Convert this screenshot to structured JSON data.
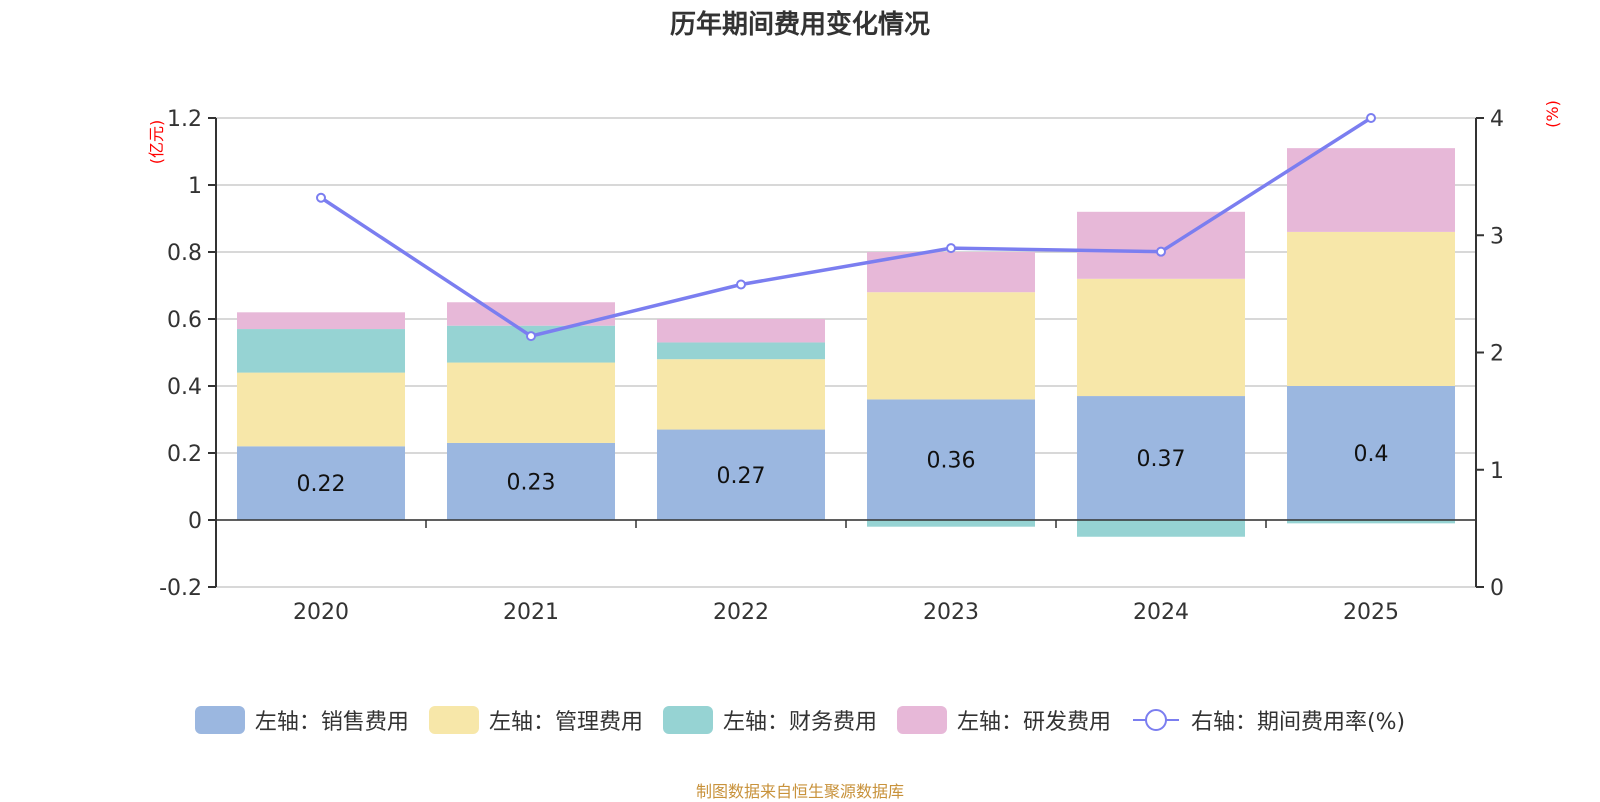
{
  "title": "历年期间费用变化情况",
  "footer": "制图数据来自恒生聚源数据库",
  "chart_data": {
    "type": "bar",
    "stacked": true,
    "title": "历年期间费用变化情况",
    "categories": [
      "2020",
      "2021",
      "2022",
      "2023",
      "2024",
      "2025"
    ],
    "left_axis": {
      "unit_label": "(亿元)",
      "ylim": [
        -0.2,
        1.2
      ],
      "ticks": [
        -0.2,
        0,
        0.2,
        0.4,
        0.6,
        0.8,
        1,
        1.2
      ],
      "tick_labels": [
        "-0.2",
        "0",
        "0.2",
        "0.4",
        "0.6",
        "0.8",
        "1",
        "1.2"
      ]
    },
    "right_axis": {
      "unit_label": "(%)",
      "ylim": [
        0,
        4
      ],
      "ticks": [
        0,
        1,
        2,
        3,
        4
      ],
      "tick_labels": [
        "0",
        "1",
        "2",
        "3",
        "4"
      ]
    },
    "grid": true,
    "legend_position": "bottom",
    "series": [
      {
        "name": "左轴：销售费用",
        "type": "bar",
        "axis": "left",
        "color": "#9bb7e0",
        "values": [
          0.22,
          0.23,
          0.27,
          0.36,
          0.37,
          0.4
        ],
        "data_labels": [
          "0.22",
          "0.23",
          "0.27",
          "0.36",
          "0.37",
          "0.4"
        ]
      },
      {
        "name": "左轴：管理费用",
        "type": "bar",
        "axis": "left",
        "color": "#f7e7a9",
        "values": [
          0.22,
          0.24,
          0.21,
          0.32,
          0.35,
          0.46
        ]
      },
      {
        "name": "左轴：财务费用",
        "type": "bar",
        "axis": "left",
        "color": "#96d3d3",
        "values": [
          0.13,
          0.11,
          0.05,
          -0.02,
          -0.05,
          -0.01
        ]
      },
      {
        "name": "左轴：研发费用",
        "type": "bar",
        "axis": "left",
        "color": "#e7b8d8",
        "values": [
          0.05,
          0.07,
          0.07,
          0.12,
          0.2,
          0.25
        ]
      },
      {
        "name": "右轴：期间费用率(%)",
        "type": "line",
        "axis": "right",
        "color": "#7b7ef0",
        "values": [
          3.32,
          2.14,
          2.58,
          2.89,
          2.86,
          4.0
        ]
      }
    ]
  }
}
